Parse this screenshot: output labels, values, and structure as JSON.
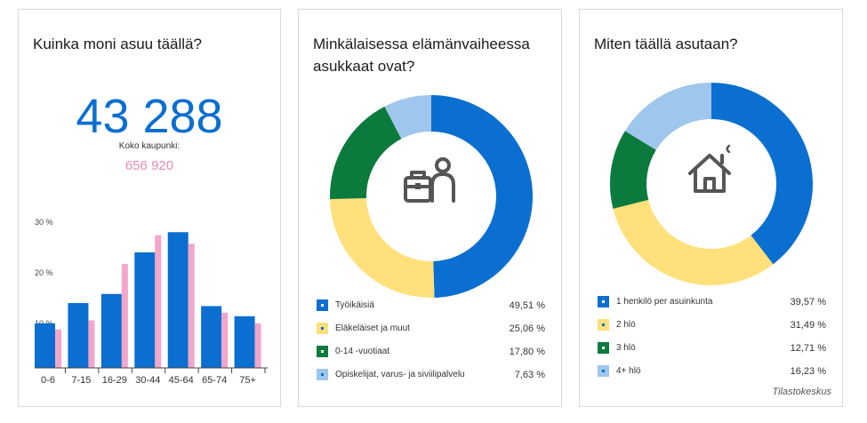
{
  "card1": {
    "title": "Kuinka moni asuu täällä?",
    "population": "43 288",
    "city_label": "Koko kaupunki:",
    "city_population": "656 920"
  },
  "card2": {
    "title": "Minkälaisessa elämänvaiheessa asukkaat ovat?",
    "icon": "worker-with-briefcase-icon",
    "legend": [
      {
        "label": "Työikäisiä",
        "value": "49,51 %"
      },
      {
        "label": "Eläkeläiset ja muut",
        "value": "25,06 %"
      },
      {
        "label": "0-14 -vuotiaat",
        "value": "17,80 %"
      },
      {
        "label": "Opiskelijat, varus- ja siviilipalvelu",
        "value": "7,63 %"
      }
    ]
  },
  "card3": {
    "title": "Miten täällä asutaan?",
    "icon": "house-icon",
    "legend": [
      {
        "label": "1 henkilö per asuinkunta",
        "value": "39,57 %"
      },
      {
        "label": "2 hlö",
        "value": "31,49 %"
      },
      {
        "label": "3 hlö",
        "value": "12,71 %"
      },
      {
        "label": "4+ hlö",
        "value": "16,23 %"
      }
    ],
    "source": "Tilastokeskus"
  },
  "colors": {
    "blue": "#0a6fd0",
    "pink": "#f2a6c9",
    "yellow": "#ffe07a",
    "green": "#0b7a3d",
    "light_blue": "#9fc6ec"
  },
  "chart_data": [
    {
      "type": "bar",
      "categories": [
        "0-6",
        "7-15",
        "16-29",
        "30-44",
        "45-64",
        "65-74",
        "75+"
      ],
      "series": [
        {
          "values": [
            8.8,
            12.8,
            14.6,
            22.8,
            26.8,
            12.2,
            10.2
          ]
        },
        {
          "values": [
            7.6,
            9.4,
            20.5,
            26.2,
            24.5,
            10.9,
            8.8
          ]
        }
      ],
      "yticks": [
        10,
        20,
        30
      ],
      "ytick_labels": [
        "10 %",
        "20 %",
        "30 %"
      ],
      "ylim": [
        0,
        30
      ],
      "grid": false
    },
    {
      "type": "pie",
      "donut": true,
      "labels": [
        "Työikäisiä",
        "Eläkeläiset ja muut",
        "0-14 -vuotiaat",
        "Opiskelijat, varus- ja siviilipalvelu"
      ],
      "values": [
        49.51,
        25.06,
        17.8,
        7.63
      ]
    },
    {
      "type": "pie",
      "donut": true,
      "labels": [
        "1 henkilö per asuinkunta",
        "2 hlö",
        "3 hlö",
        "4+ hlö"
      ],
      "values": [
        39.57,
        31.49,
        12.71,
        16.23
      ]
    }
  ]
}
